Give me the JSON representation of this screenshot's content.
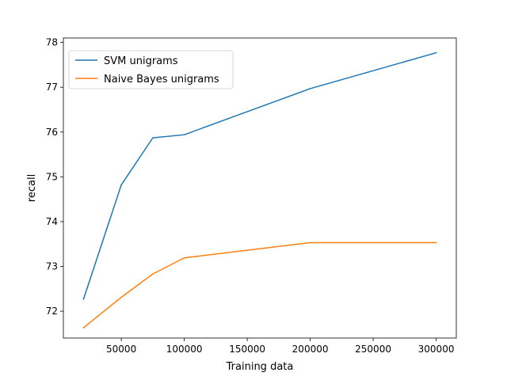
{
  "chart_data": {
    "type": "line",
    "title": "",
    "xlabel": "Training data",
    "ylabel": "recall",
    "xlim": [
      4000,
      316000
    ],
    "ylim": [
      71.4,
      78.1
    ],
    "xticks": [
      50000,
      100000,
      150000,
      200000,
      250000,
      300000
    ],
    "xtick_labels": [
      "50000",
      "100000",
      "150000",
      "200000",
      "250000",
      "300000"
    ],
    "yticks": [
      72,
      73,
      74,
      75,
      76,
      77,
      78
    ],
    "ytick_labels": [
      "72",
      "73",
      "74",
      "75",
      "76",
      "77",
      "78"
    ],
    "grid": false,
    "legend_position": "top-left",
    "series": [
      {
        "name": "SVM unigrams",
        "color": "#1f77b4",
        "x": [
          20000,
          50000,
          75000,
          100000,
          200000,
          300000
        ],
        "y": [
          72.27,
          74.82,
          75.87,
          75.94,
          76.97,
          77.77
        ]
      },
      {
        "name": "Naive Bayes unigrams",
        "color": "#ff7f0e",
        "x": [
          20000,
          50000,
          75000,
          100000,
          200000,
          300000
        ],
        "y": [
          71.63,
          72.31,
          72.83,
          73.19,
          73.53,
          73.53
        ]
      }
    ]
  }
}
